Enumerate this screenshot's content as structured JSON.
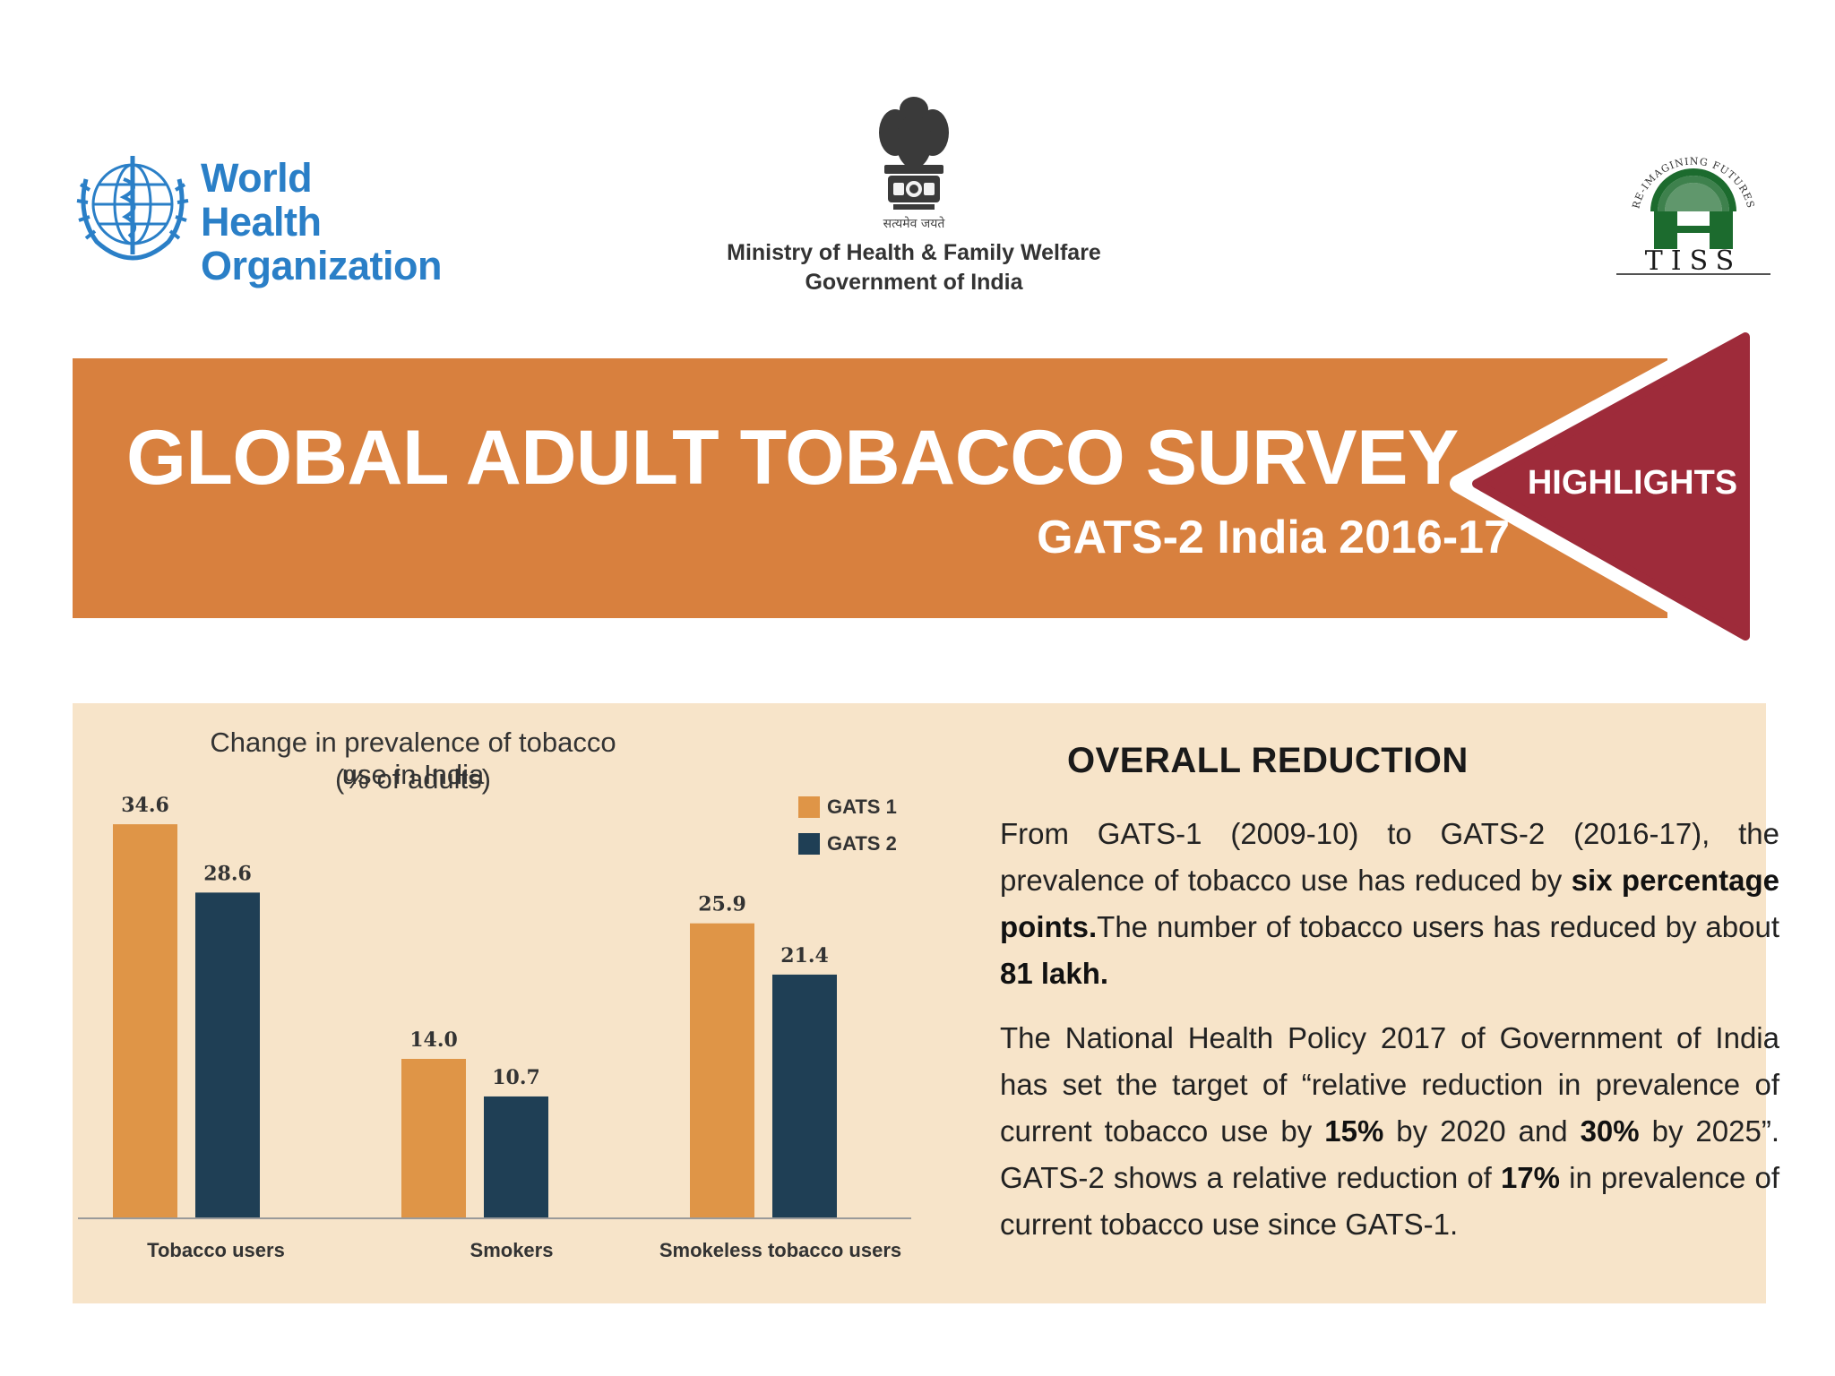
{
  "logos": {
    "who": {
      "line1": "World Health",
      "line2": "Organization",
      "color": "#2a7fc7"
    },
    "ministry": {
      "motto": "सत्यमेव जयते",
      "line1": "Ministry of Health & Family Welfare",
      "line2": "Government of India"
    },
    "tiss": {
      "name": "TISS",
      "tagline": "RE-IMAGINING FUTURES",
      "color": "#1c6b2e"
    }
  },
  "banner": {
    "title": "GLOBAL ADULT TOBACCO SURVEY",
    "subtitle": "GATS-2 India 2016-17",
    "badge": "HIGHLIGHTS",
    "bg_color": "#d8803e",
    "badge_color": "#9e2b3a"
  },
  "chart_data": {
    "type": "bar",
    "title": "Change in prevalence of tobacco use in India",
    "subtitle": "(% of adults)",
    "categories": [
      "Tobacco users",
      "Smokers",
      "Smokeless tobacco users"
    ],
    "series": [
      {
        "name": "GATS 1",
        "values": [
          34.6,
          14.0,
          25.9
        ],
        "labels": [
          "34.6",
          "14.0",
          "25.9"
        ],
        "color": "#df9547"
      },
      {
        "name": "GATS 2",
        "values": [
          28.6,
          10.7,
          21.4
        ],
        "labels": [
          "28.6",
          "10.7",
          "21.4"
        ],
        "color": "#1f3f55"
      }
    ],
    "ylim": [
      0,
      35
    ],
    "grid": false,
    "legend": "top-right"
  },
  "side": {
    "heading": "OVERALL REDUCTION",
    "para1": {
      "a": "From GATS-1 (2009-10) to GATS-2 (2016-17), the prevalence of tobacco use has reduced by ",
      "b": "six percentage points.",
      "c": "The number of tobacco users has reduced by about ",
      "d": "81 lakh."
    },
    "para2": {
      "a": "The National Health Policy 2017 of Government of India has set the target of “relative reduction in prevalence of current tobacco use by ",
      "b": "15%",
      "c": " by 2020 and ",
      "d": "30%",
      "e": " by 2025”. GATS-2 shows a relative reduction of ",
      "f": "17%",
      "g": " in prevalence of current tobacco use since GATS-1."
    }
  }
}
